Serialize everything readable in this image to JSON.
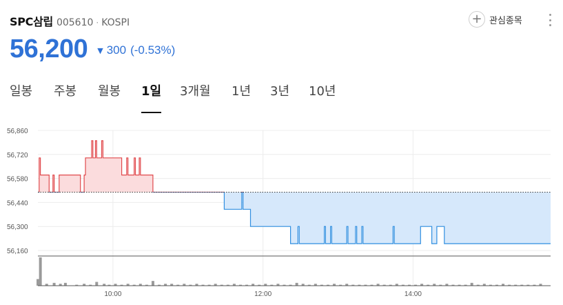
{
  "header": {
    "name": "SPC삼립",
    "code": "005610",
    "dot": "·",
    "market": "KOSPI",
    "watch_label": "관심종목",
    "plus": "+"
  },
  "quote": {
    "price": "56,200",
    "arrow": "▼",
    "change": "300",
    "change_pct": "(-0.53%)"
  },
  "tabs": [
    {
      "label": "일봉",
      "active": false
    },
    {
      "label": "주봉",
      "active": false
    },
    {
      "label": "월봉",
      "active": false
    },
    {
      "label": "1일",
      "active": true
    },
    {
      "label": "3개월",
      "active": false
    },
    {
      "label": "1년",
      "active": false
    },
    {
      "label": "3년",
      "active": false
    },
    {
      "label": "10년",
      "active": false
    }
  ],
  "colors": {
    "up": "#e0494c",
    "up_fill": "#fbdcdd",
    "down": "#2f8ee0",
    "down_fill": "#d6e8fb",
    "accent": "#2f72d6",
    "volume": "#9a9a9a"
  },
  "chart_data": {
    "type": "line",
    "y_ticks": [
      "56,860",
      "56,720",
      "56,580",
      "56,440",
      "56,300",
      "56,160"
    ],
    "x_ticks": [
      "10:00",
      "12:00",
      "14:00"
    ],
    "ylim": [
      56160,
      56860
    ],
    "base_price": 56500,
    "x_range": [
      540,
      950
    ],
    "grid": true,
    "series": [
      {
        "values": [
          [
            540,
            56500
          ],
          [
            541,
            56700
          ],
          [
            542,
            56600
          ],
          [
            548,
            56600
          ],
          [
            549,
            56500
          ],
          [
            551,
            56500
          ],
          [
            552,
            56600
          ],
          [
            553,
            56500
          ],
          [
            556,
            56500
          ],
          [
            557,
            56600
          ],
          [
            573,
            56600
          ],
          [
            574,
            56500
          ],
          [
            576,
            56500
          ],
          [
            577,
            56600
          ],
          [
            578,
            56700
          ],
          [
            582,
            56700
          ],
          [
            583,
            56800
          ],
          [
            584,
            56700
          ],
          [
            585,
            56700
          ],
          [
            586,
            56800
          ],
          [
            587,
            56700
          ],
          [
            590,
            56700
          ],
          [
            591,
            56800
          ],
          [
            592,
            56700
          ],
          [
            606,
            56700
          ],
          [
            607,
            56600
          ],
          [
            610,
            56600
          ],
          [
            611,
            56700
          ],
          [
            612,
            56600
          ],
          [
            616,
            56600
          ],
          [
            617,
            56700
          ],
          [
            618,
            56600
          ],
          [
            620,
            56600
          ],
          [
            621,
            56700
          ],
          [
            622,
            56600
          ],
          [
            631,
            56600
          ],
          [
            632,
            56500
          ],
          [
            688,
            56500
          ],
          [
            689,
            56400
          ],
          [
            702,
            56400
          ],
          [
            703,
            56500
          ],
          [
            704,
            56400
          ],
          [
            709,
            56400
          ],
          [
            710,
            56300
          ],
          [
            741,
            56300
          ],
          [
            742,
            56200
          ],
          [
            747,
            56200
          ],
          [
            748,
            56300
          ],
          [
            749,
            56200
          ],
          [
            768,
            56200
          ],
          [
            769,
            56300
          ],
          [
            770,
            56200
          ],
          [
            773,
            56200
          ],
          [
            774,
            56300
          ],
          [
            775,
            56200
          ],
          [
            786,
            56200
          ],
          [
            787,
            56300
          ],
          [
            788,
            56200
          ],
          [
            793,
            56200
          ],
          [
            794,
            56300
          ],
          [
            795,
            56200
          ],
          [
            798,
            56200
          ],
          [
            799,
            56300
          ],
          [
            800,
            56200
          ],
          [
            823,
            56200
          ],
          [
            824,
            56300
          ],
          [
            825,
            56200
          ],
          [
            845,
            56200
          ],
          [
            846,
            56300
          ],
          [
            854,
            56300
          ],
          [
            855,
            56200
          ],
          [
            858,
            56200
          ],
          [
            859,
            56300
          ],
          [
            864,
            56300
          ],
          [
            865,
            56200
          ],
          [
            950,
            56200
          ]
        ]
      }
    ],
    "volume": [
      [
        540,
        7
      ],
      [
        542,
        30
      ],
      [
        547,
        2
      ],
      [
        553,
        3
      ],
      [
        558,
        2
      ],
      [
        562,
        3
      ],
      [
        571,
        1
      ],
      [
        577,
        2
      ],
      [
        582,
        1
      ],
      [
        587,
        4
      ],
      [
        593,
        2
      ],
      [
        597,
        1
      ],
      [
        602,
        2
      ],
      [
        607,
        1
      ],
      [
        612,
        2
      ],
      [
        617,
        1
      ],
      [
        622,
        2
      ],
      [
        627,
        1
      ],
      [
        632,
        5
      ],
      [
        637,
        1
      ],
      [
        642,
        2
      ],
      [
        647,
        2
      ],
      [
        652,
        1
      ],
      [
        657,
        2
      ],
      [
        662,
        1
      ],
      [
        667,
        2
      ],
      [
        672,
        1
      ],
      [
        677,
        1
      ],
      [
        682,
        2
      ],
      [
        687,
        1
      ],
      [
        692,
        1
      ],
      [
        697,
        2
      ],
      [
        702,
        1
      ],
      [
        707,
        1
      ],
      [
        712,
        2
      ],
      [
        717,
        1
      ],
      [
        722,
        2
      ],
      [
        727,
        1
      ],
      [
        732,
        2
      ],
      [
        737,
        1
      ],
      [
        742,
        1
      ],
      [
        747,
        3
      ],
      [
        752,
        2
      ],
      [
        757,
        1
      ],
      [
        762,
        2
      ],
      [
        767,
        1
      ],
      [
        772,
        1
      ],
      [
        777,
        2
      ],
      [
        782,
        1
      ],
      [
        787,
        2
      ],
      [
        792,
        1
      ],
      [
        797,
        1
      ],
      [
        802,
        1
      ],
      [
        807,
        1
      ],
      [
        812,
        2
      ],
      [
        817,
        1
      ],
      [
        822,
        1
      ],
      [
        827,
        2
      ],
      [
        832,
        1
      ],
      [
        837,
        1
      ],
      [
        842,
        1
      ],
      [
        847,
        2
      ],
      [
        852,
        1
      ],
      [
        857,
        2
      ],
      [
        862,
        1
      ],
      [
        867,
        2
      ],
      [
        872,
        1
      ],
      [
        877,
        1
      ],
      [
        882,
        1
      ],
      [
        887,
        3
      ],
      [
        892,
        1
      ],
      [
        897,
        2
      ],
      [
        902,
        1
      ],
      [
        907,
        1
      ],
      [
        912,
        2
      ],
      [
        917,
        1
      ],
      [
        922,
        1
      ],
      [
        927,
        1
      ],
      [
        932,
        1
      ],
      [
        937,
        1
      ],
      [
        942,
        2
      ]
    ]
  }
}
